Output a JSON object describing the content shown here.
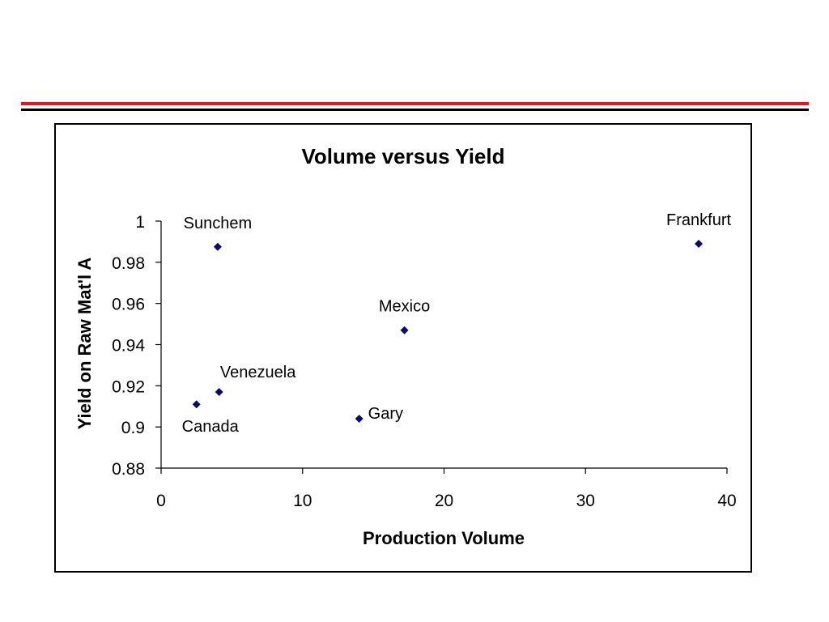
{
  "colors": {
    "rule_red": "#e8161c",
    "rule_black": "#000000",
    "marker": "#0a0a6e",
    "axis": "#000000"
  },
  "chart_data": {
    "type": "scatter",
    "title": "Volume versus Yield",
    "xlabel": "Production Volume",
    "ylabel": "Yield on Raw Mat'l A",
    "xlim": [
      0,
      40
    ],
    "ylim": [
      0.88,
      1
    ],
    "xticks": [
      0,
      10,
      20,
      30,
      40
    ],
    "yticks": [
      0.88,
      0.9,
      0.92,
      0.94,
      0.96,
      0.98,
      1
    ],
    "xtick_labels": [
      "0",
      "10",
      "20",
      "30",
      "40"
    ],
    "ytick_labels": [
      "0.88",
      "0.9",
      "0.92",
      "0.94",
      "0.96",
      "0.98",
      "1"
    ],
    "grid": false,
    "legend": "none",
    "marker": "diamond",
    "points": [
      {
        "label": "Sunchem",
        "x": 4.0,
        "y": 0.9875,
        "label_pos": "above"
      },
      {
        "label": "Frankfurt",
        "x": 38.0,
        "y": 0.989,
        "label_pos": "above"
      },
      {
        "label": "Mexico",
        "x": 17.2,
        "y": 0.947,
        "label_pos": "above"
      },
      {
        "label": "Venezuela",
        "x": 4.1,
        "y": 0.917,
        "label_pos": "above-right"
      },
      {
        "label": "Canada",
        "x": 2.5,
        "y": 0.911,
        "label_pos": "below"
      },
      {
        "label": "Gary",
        "x": 14.0,
        "y": 0.904,
        "label_pos": "right"
      }
    ]
  }
}
